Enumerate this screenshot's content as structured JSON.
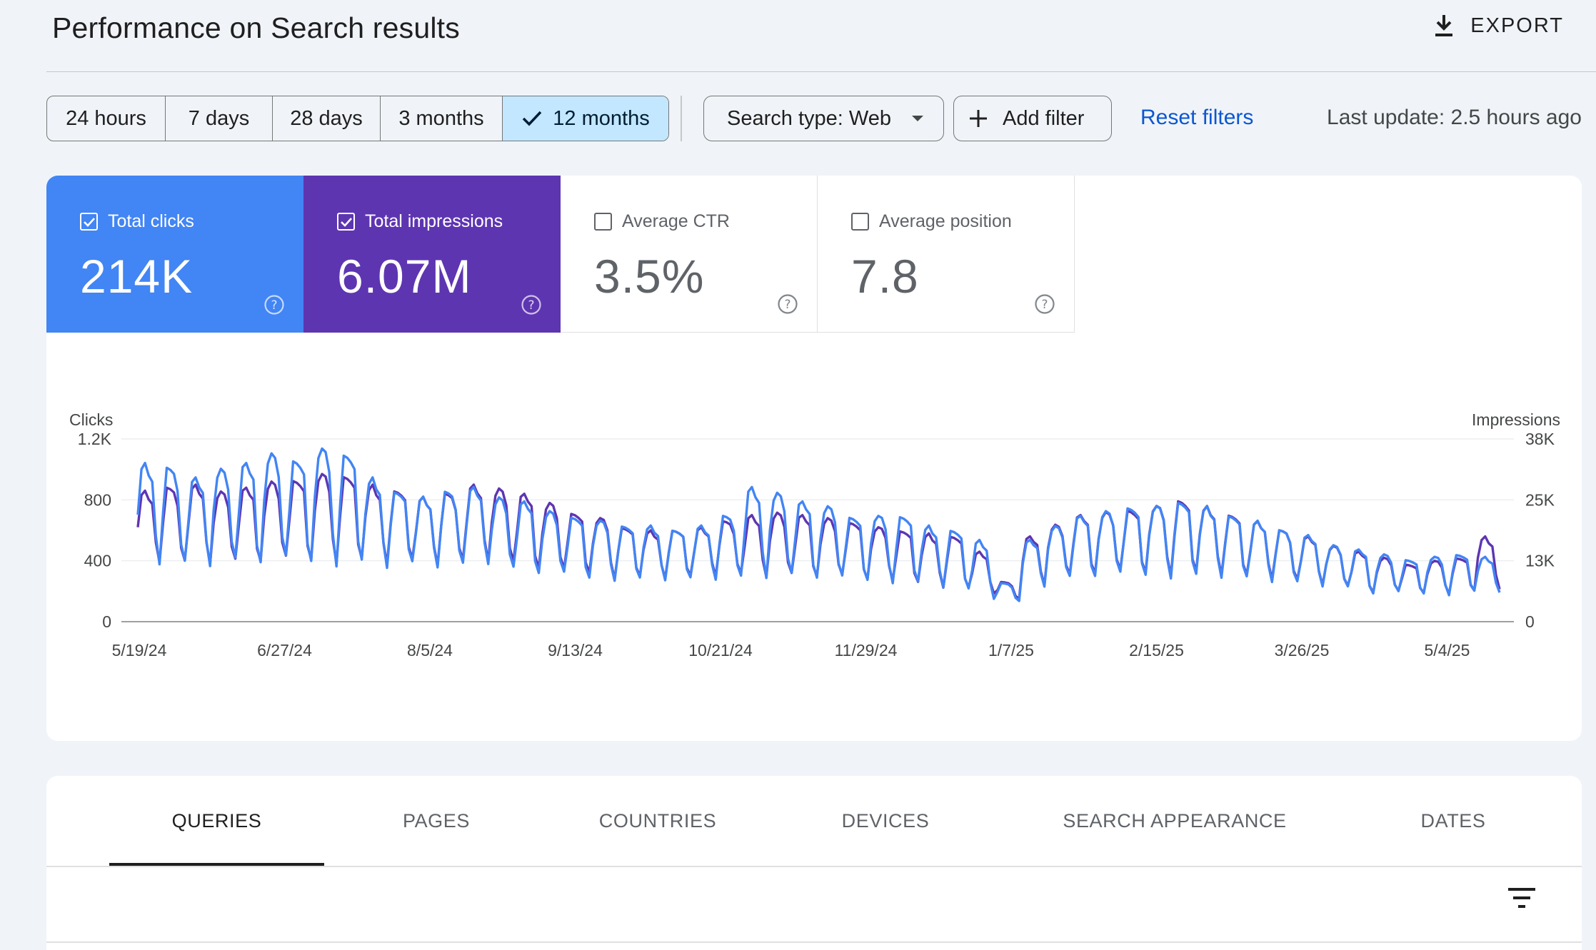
{
  "header": {
    "title": "Performance on Search results",
    "export_label": "EXPORT"
  },
  "filters": {
    "ranges": [
      {
        "label": "24 hours",
        "selected": false
      },
      {
        "label": "7 days",
        "selected": false
      },
      {
        "label": "28 days",
        "selected": false
      },
      {
        "label": "3 months",
        "selected": false
      },
      {
        "label": "12 months",
        "selected": true
      }
    ],
    "search_type": "Search type: Web",
    "add_filter": "Add filter",
    "reset": "Reset filters",
    "last_update": "Last update: 2.5 hours ago"
  },
  "metrics": [
    {
      "label": "Total clicks",
      "value": "214K",
      "checked": true,
      "color": "#4285f4"
    },
    {
      "label": "Total impressions",
      "value": "6.07M",
      "checked": true,
      "color": "#5e35b1"
    },
    {
      "label": "Average CTR",
      "value": "3.5%",
      "checked": false
    },
    {
      "label": "Average position",
      "value": "7.8",
      "checked": false
    }
  ],
  "chart_data": {
    "type": "line",
    "ylabel": "Clicks",
    "y2label": "Impressions",
    "y_ticks": [
      "0",
      "400",
      "800",
      "1.2K"
    ],
    "y2_ticks": [
      "0",
      "13K",
      "25K",
      "38K"
    ],
    "ylim": [
      0,
      1200
    ],
    "y2lim": [
      0,
      38000
    ],
    "x_ticks": [
      "5/19/24",
      "6/27/24",
      "8/5/24",
      "9/13/24",
      "10/21/24",
      "11/29/24",
      "1/7/25",
      "2/15/25",
      "3/26/25",
      "5/4/25"
    ],
    "grid": true,
    "series": [
      {
        "name": "Clicks",
        "color": "#5e35b1",
        "axis": "left",
        "weekly_highs": [
          860,
          880,
          900,
          860,
          880,
          920,
          940,
          970,
          960,
          900,
          860,
          820,
          840,
          900,
          880,
          840,
          780,
          720,
          680,
          620,
          600,
          600,
          620,
          660,
          700,
          720,
          700,
          680,
          660,
          620,
          600,
          580,
          560,
          460,
          260,
          560,
          640,
          700,
          720,
          740,
          760,
          800,
          760,
          700,
          660,
          600,
          560,
          500,
          460,
          420,
          380,
          400,
          420,
          560
        ],
        "weekly_lows": [
          380,
          360,
          360,
          370,
          380,
          380,
          380,
          380,
          380,
          370,
          380,
          360,
          370,
          380,
          350,
          330,
          300,
          300,
          280,
          280,
          280,
          280,
          290,
          290,
          280,
          280,
          280,
          270,
          260,
          270,
          240,
          220,
          200,
          180,
          140,
          230,
          280,
          300,
          300,
          300,
          300,
          300,
          300,
          280,
          270,
          250,
          230,
          210,
          180,
          180,
          180,
          180,
          190,
          210
        ]
      },
      {
        "name": "Impressions",
        "color": "#4285f4",
        "axis": "right",
        "weekly_highs": [
          33000,
          32000,
          30000,
          32000,
          33000,
          35000,
          34000,
          36000,
          35000,
          30000,
          27000,
          26000,
          27000,
          28000,
          26000,
          25000,
          23000,
          22000,
          21000,
          20000,
          20000,
          19000,
          20000,
          22000,
          28000,
          27000,
          25000,
          24000,
          22000,
          22000,
          22000,
          20000,
          19000,
          17000,
          8000,
          17000,
          20000,
          22000,
          23000,
          24000,
          24000,
          25000,
          24000,
          22000,
          21000,
          19000,
          18000,
          16000,
          15000,
          14000,
          13000,
          13500,
          14000,
          13500
        ],
        "weekly_lows": [
          11500,
          11000,
          11000,
          11500,
          11500,
          11500,
          11500,
          11500,
          11500,
          11000,
          11500,
          11000,
          11000,
          11500,
          10000,
          9500,
          9000,
          8500,
          8500,
          8500,
          8500,
          8500,
          8500,
          8500,
          8500,
          8500,
          8500,
          8000,
          8000,
          8000,
          7500,
          7000,
          6000,
          4500,
          4000,
          7000,
          8500,
          9000,
          9000,
          9000,
          9000,
          9000,
          9000,
          8500,
          8000,
          7500,
          7000,
          6500,
          5500,
          5500,
          5500,
          5500,
          6000,
          6000
        ]
      }
    ]
  },
  "tabs": [
    {
      "label": "QUERIES",
      "active": true
    },
    {
      "label": "PAGES",
      "active": false
    },
    {
      "label": "COUNTRIES",
      "active": false
    },
    {
      "label": "DEVICES",
      "active": false
    },
    {
      "label": "SEARCH APPEARANCE",
      "active": false
    },
    {
      "label": "DATES",
      "active": false
    }
  ],
  "icons": {
    "export": "download-icon",
    "dropdown": "caret-down-icon",
    "add": "plus-icon",
    "check": "check-icon",
    "help": "help-circle-icon",
    "table_filter": "filter-list-icon"
  }
}
